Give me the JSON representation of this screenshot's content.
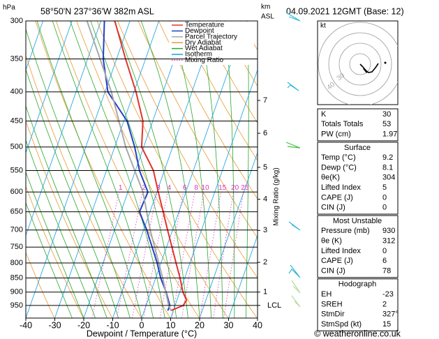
{
  "chart_data": {
    "type": "skewt",
    "title": "58°50'N 237°36'W 382m ASL",
    "date": "04.09.2021 12GMT (Base: 12)",
    "y_label": "hPa",
    "y2_label": [
      "km",
      "ASL"
    ],
    "x_label": "Dewpoint / Temperature (°C)",
    "xlim": [
      -40,
      40
    ],
    "xticks": [
      -40,
      -30,
      -20,
      -10,
      0,
      10,
      20,
      30,
      40
    ],
    "ylim": [
      1000,
      300
    ],
    "yticks": [
      300,
      350,
      400,
      450,
      500,
      550,
      600,
      650,
      700,
      750,
      800,
      850,
      900,
      950
    ],
    "y2ticks": [
      1,
      2,
      3,
      4,
      5,
      6,
      7
    ],
    "y2_pressure": [
      900,
      798,
      701,
      618,
      543,
      473,
      414
    ],
    "lcl": {
      "label": "LCL",
      "pressure": 950
    },
    "mixing_ratio": {
      "axis_label": "Mixing Ratio (g/kg)",
      "pressure": 600,
      "values": [
        1,
        2,
        3,
        4,
        6,
        8,
        10,
        15,
        20,
        25
      ]
    },
    "series": [
      {
        "name": "Temperature",
        "color": "#e8302a",
        "pressure": [
          970,
          950,
          930,
          900,
          850,
          800,
          700,
          600,
          550,
          500,
          450,
          400,
          350,
          300
        ],
        "values": [
          9.2,
          12.8,
          13.3,
          11.1,
          8.4,
          5.2,
          -1.7,
          -9.5,
          -13.8,
          -20.7,
          -23.4,
          -29.3,
          -36.9,
          -45.2
        ]
      },
      {
        "name": "Dewpoint",
        "color": "#2040c8",
        "pressure": [
          970,
          950,
          900,
          850,
          800,
          700,
          650,
          600,
          550,
          500,
          450,
          400,
          350,
          300
        ],
        "values": [
          8.1,
          8.2,
          5.3,
          1.7,
          -1.3,
          -8.9,
          -13.6,
          -13.1,
          -18.6,
          -23.1,
          -28.9,
          -39,
          -44.6,
          -48.8
        ]
      },
      {
        "name": "Parcel Trajectory",
        "color": "#a8a8a8",
        "pressure": [
          970,
          950,
          850,
          700,
          600,
          500,
          400,
          300
        ],
        "values": [
          9.2,
          7.8,
          2.4,
          -7.7,
          -14.8,
          -26.2,
          -37.8,
          -54.8
        ]
      }
    ],
    "reference_lines": [
      {
        "name": "Dry Adiabat",
        "color": "#e89a30"
      },
      {
        "name": "Wet Adiabat",
        "color": "#2aa82a"
      },
      {
        "name": "Isotherm",
        "color": "#10a0e0"
      },
      {
        "name": "Mixing Ratio",
        "color": "#e030c0"
      }
    ]
  },
  "hodograph": {
    "label": "kt",
    "ring_labels": [
      "40",
      "30"
    ]
  },
  "table": {
    "blocks": [
      {
        "rows": [
          [
            "K",
            "30"
          ],
          [
            "Totals Totals",
            "53"
          ],
          [
            "PW (cm)",
            "1.97"
          ]
        ]
      },
      {
        "title": "Surface",
        "rows": [
          [
            "Temp (°C)",
            "9.2"
          ],
          [
            "Dewp (°C)",
            "8.1"
          ],
          [
            "θe(K)",
            "304"
          ],
          [
            "Lifted Index",
            "5"
          ],
          [
            "CAPE (J)",
            "0"
          ],
          [
            "CIN (J)",
            "0"
          ]
        ]
      },
      {
        "title": "Most Unstable",
        "rows": [
          [
            "Pressure (mb)",
            "930"
          ],
          [
            "θe (K)",
            "312"
          ],
          [
            "Lifted Index",
            "0"
          ],
          [
            "CAPE (J)",
            "6"
          ],
          [
            "CIN (J)",
            "78"
          ]
        ]
      },
      {
        "title": "Hodograph",
        "rows": [
          [
            "EH",
            "-23"
          ],
          [
            "SREH",
            "2"
          ],
          [
            "StmDir",
            "327°"
          ],
          [
            "StmSpd (kt)",
            "15"
          ]
        ]
      }
    ]
  },
  "footer": "© weatheronline.co.uk"
}
